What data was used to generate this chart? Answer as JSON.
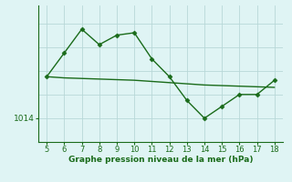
{
  "x": [
    5,
    6,
    7,
    8,
    9,
    10,
    11,
    12,
    13,
    14,
    15,
    16,
    17,
    18
  ],
  "y": [
    1017.5,
    1019.5,
    1021.5,
    1020.2,
    1021.0,
    1021.2,
    1019.0,
    1017.5,
    1015.5,
    1014.0,
    1015.0,
    1016.0,
    1016.0,
    1017.2
  ],
  "y_trend": [
    1017.5,
    1017.4,
    1017.35,
    1017.3,
    1017.25,
    1017.2,
    1017.1,
    1017.0,
    1016.9,
    1016.8,
    1016.75,
    1016.7,
    1016.65,
    1016.6
  ],
  "xlim": [
    4.5,
    18.5
  ],
  "ylim": [
    1012.0,
    1023.5
  ],
  "ytick_val": 1014,
  "ytick_label": "1014",
  "xticks": [
    5,
    6,
    7,
    8,
    9,
    10,
    11,
    12,
    13,
    14,
    15,
    16,
    17,
    18
  ],
  "y_gridlines": [
    1014,
    1016,
    1018,
    1020,
    1022
  ],
  "xlabel": "Graphe pression niveau de la mer (hPa)",
  "bg_color": "#dff4f4",
  "line_color": "#1a6b1a",
  "grid_color": "#b8d8d8",
  "marker": "D",
  "marker_size": 2.5,
  "line_width": 1.0,
  "xlabel_fontsize": 6.5,
  "tick_fontsize": 6.0,
  "ytick_fontsize": 6.5
}
